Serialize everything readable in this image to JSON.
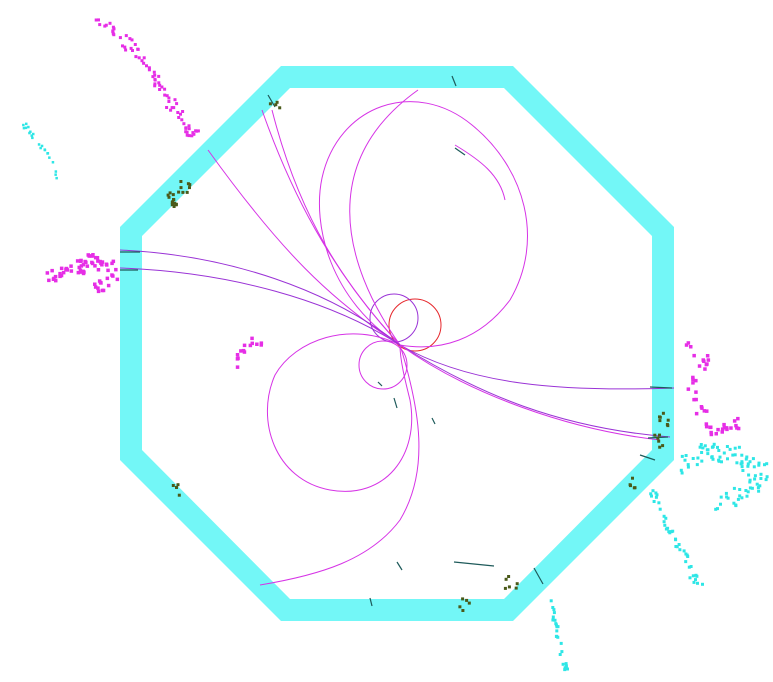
{
  "colors": {
    "background": "#ffffff",
    "detector_ring": "#73f7f7",
    "track_magenta": "#d633e6",
    "track_purple": "#9a33d6",
    "track_red": "#e6262b",
    "hits_magenta": "#e62ee6",
    "hits_cyan": "#2ee6e6",
    "calo_deposit": "#4a5a1a",
    "segment_dark": "#1e5a5a"
  },
  "icons": {
    "detector": "octagon-ring",
    "tracks": "helix-arcs",
    "hits": "square-markers"
  }
}
